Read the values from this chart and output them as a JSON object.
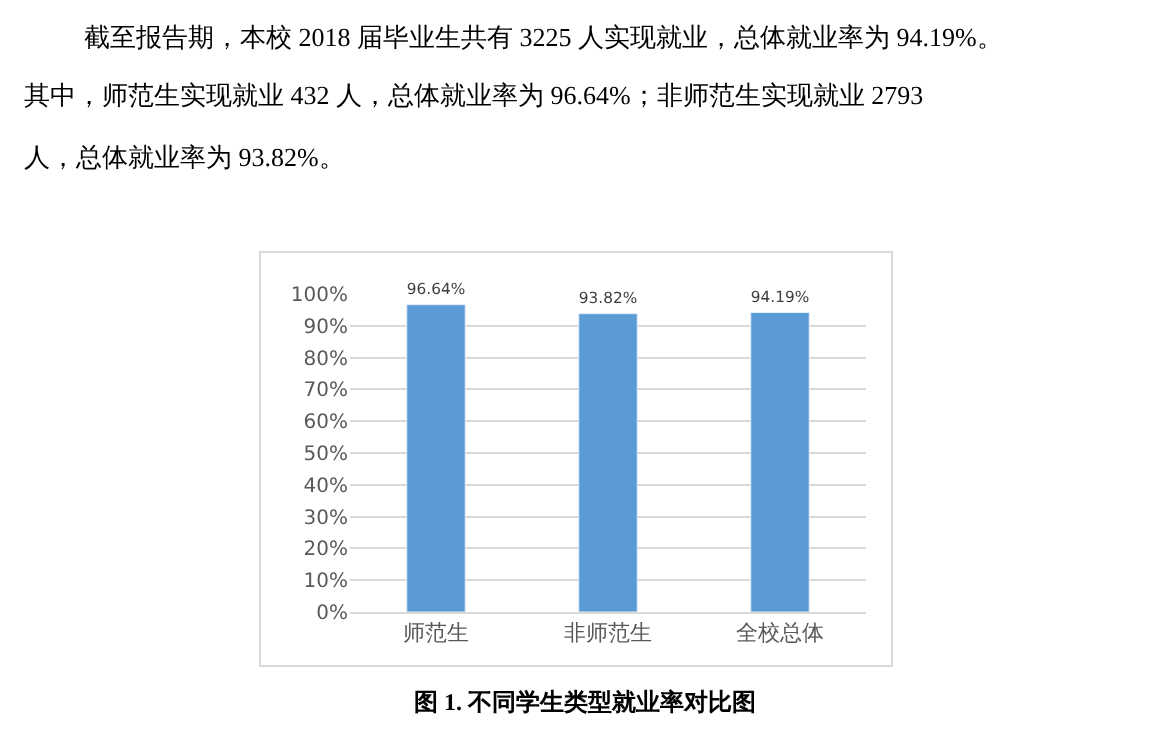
{
  "chart_data": {
    "type": "bar",
    "title": "图 1. 不同学生类型就业率对比图",
    "annotations": [
      "截至报告期，本校 2018 届毕业生共有 3225 人实现就业，总体就业率为 94.19%。",
      "其中，师范生实现就业 432 人，总体就业率为 96.64%；非师范生实现就业 2793",
      "人，总体就业率为 93.82%。"
    ],
    "categories": [
      "师范生",
      "非师范生",
      "全校总体"
    ],
    "values": [
      96.64,
      93.82,
      94.19
    ],
    "value_labels": [
      "96.64%",
      "93.82%",
      "94.19%"
    ],
    "color": "#5b9bd5",
    "ylim": [
      0,
      100
    ],
    "yticks": [
      {
        "value": 0,
        "label": "0%"
      },
      {
        "value": 10,
        "label": "10%"
      },
      {
        "value": 20,
        "label": "20%"
      },
      {
        "value": 30,
        "label": "30%"
      },
      {
        "value": 40,
        "label": "40%"
      },
      {
        "value": 50,
        "label": "50%"
      },
      {
        "value": 60,
        "label": "60%"
      },
      {
        "value": 70,
        "label": "70%"
      },
      {
        "value": 80,
        "label": "80%"
      },
      {
        "value": 90,
        "label": "90%"
      },
      {
        "value": 100,
        "label": "100%"
      }
    ],
    "grid": "y",
    "legend": false
  }
}
